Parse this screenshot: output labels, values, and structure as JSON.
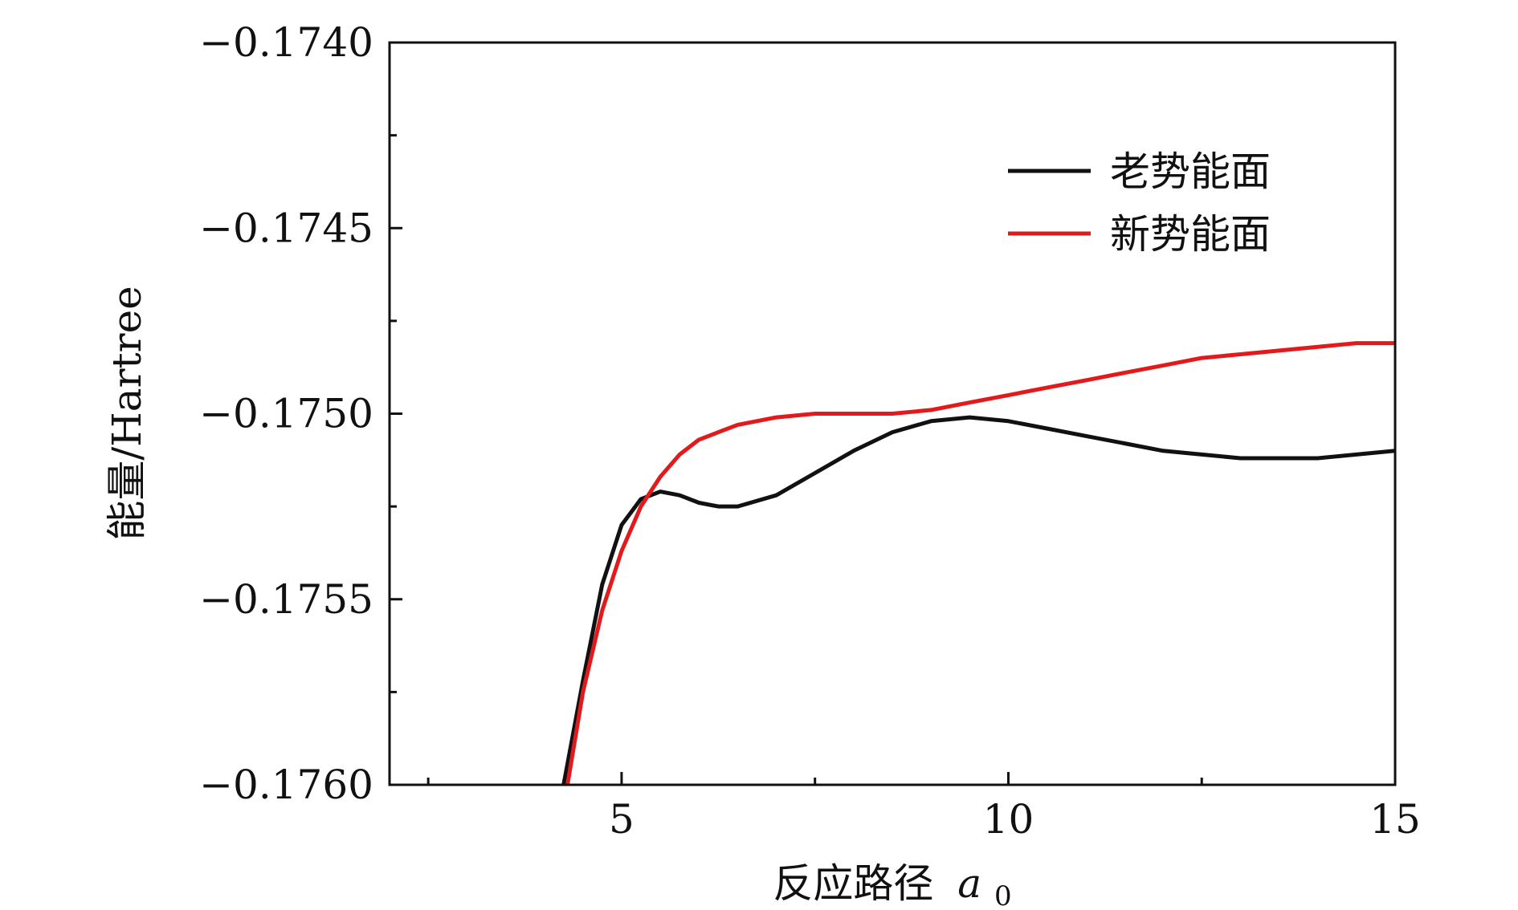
{
  "chart_data": {
    "type": "line",
    "title": "",
    "xlabel": "反应路径",
    "xlabel_symbol": "a",
    "xlabel_subscript": "0",
    "ylabel": "能量/Hartree",
    "xlim": [
      2.0,
      15.0
    ],
    "ylim": [
      -0.176,
      -0.174
    ],
    "x_ticks": [
      5,
      10,
      15
    ],
    "x_tick_labels": [
      "5",
      "10",
      "15"
    ],
    "x_minor_ticks": [
      2.5,
      7.5,
      12.5
    ],
    "y_ticks": [
      -0.174,
      -0.1745,
      -0.175,
      -0.1755,
      -0.176
    ],
    "y_tick_labels": [
      "−0.1740",
      "−0.1745",
      "−0.1750",
      "−0.1755",
      "−0.1760"
    ],
    "y_minor_ticks": [
      -0.17425,
      -0.17475,
      -0.17525,
      -0.17575
    ],
    "grid": false,
    "legend_position": "top-right",
    "series": [
      {
        "name": "老势能面",
        "color": "#111111",
        "x": [
          4.25,
          4.5,
          4.75,
          5.0,
          5.25,
          5.5,
          5.75,
          6.0,
          6.25,
          6.5,
          7.0,
          7.5,
          8.0,
          8.5,
          9.0,
          9.5,
          10.0,
          10.5,
          11.0,
          11.5,
          12.0,
          12.5,
          13.0,
          13.5,
          14.0,
          14.5,
          15.0
        ],
        "y": [
          -0.176,
          -0.17572,
          -0.17546,
          -0.1753,
          -0.17523,
          -0.17521,
          -0.17522,
          -0.17524,
          -0.17525,
          -0.17525,
          -0.17522,
          -0.17516,
          -0.1751,
          -0.17505,
          -0.17502,
          -0.17501,
          -0.17502,
          -0.17504,
          -0.17506,
          -0.17508,
          -0.1751,
          -0.17511,
          -0.17512,
          -0.17512,
          -0.17512,
          -0.17511,
          -0.1751
        ]
      },
      {
        "name": "新势能面",
        "color": "#e31a1c",
        "x": [
          4.3,
          4.5,
          4.75,
          5.0,
          5.25,
          5.5,
          5.75,
          6.0,
          6.25,
          6.5,
          7.0,
          7.5,
          8.0,
          8.5,
          9.0,
          9.5,
          10.0,
          10.5,
          11.0,
          11.5,
          12.0,
          12.5,
          13.0,
          13.5,
          14.0,
          14.5,
          15.0
        ],
        "y": [
          -0.176,
          -0.17575,
          -0.17553,
          -0.17537,
          -0.17525,
          -0.17517,
          -0.17511,
          -0.17507,
          -0.17505,
          -0.17503,
          -0.17501,
          -0.175,
          -0.175,
          -0.175,
          -0.17499,
          -0.17497,
          -0.17495,
          -0.17493,
          -0.17491,
          -0.17489,
          -0.17487,
          -0.17485,
          -0.17484,
          -0.17483,
          -0.17482,
          -0.17481,
          -0.17481
        ]
      }
    ]
  }
}
